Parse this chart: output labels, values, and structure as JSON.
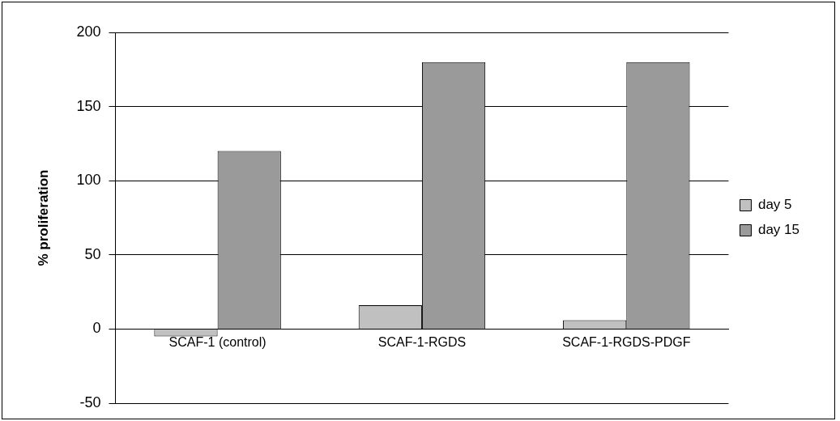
{
  "chart_data": {
    "type": "bar",
    "ylabel": "% proliferation",
    "categories": [
      "SCAF-1 (control)",
      "SCAF-1-RGDS",
      "SCAF-1-RGDS-PDGF"
    ],
    "series": [
      {
        "name": "day 5",
        "color": "#c0c0c0",
        "values": [
          -5,
          16,
          6
        ]
      },
      {
        "name": "day 15",
        "color": "#9a9a9a",
        "values": [
          120,
          180,
          180
        ]
      }
    ],
    "ylim": [
      -50,
      200
    ],
    "yticks": [
      -50,
      0,
      50,
      100,
      150,
      200
    ],
    "grid": "y",
    "legend": "right"
  }
}
